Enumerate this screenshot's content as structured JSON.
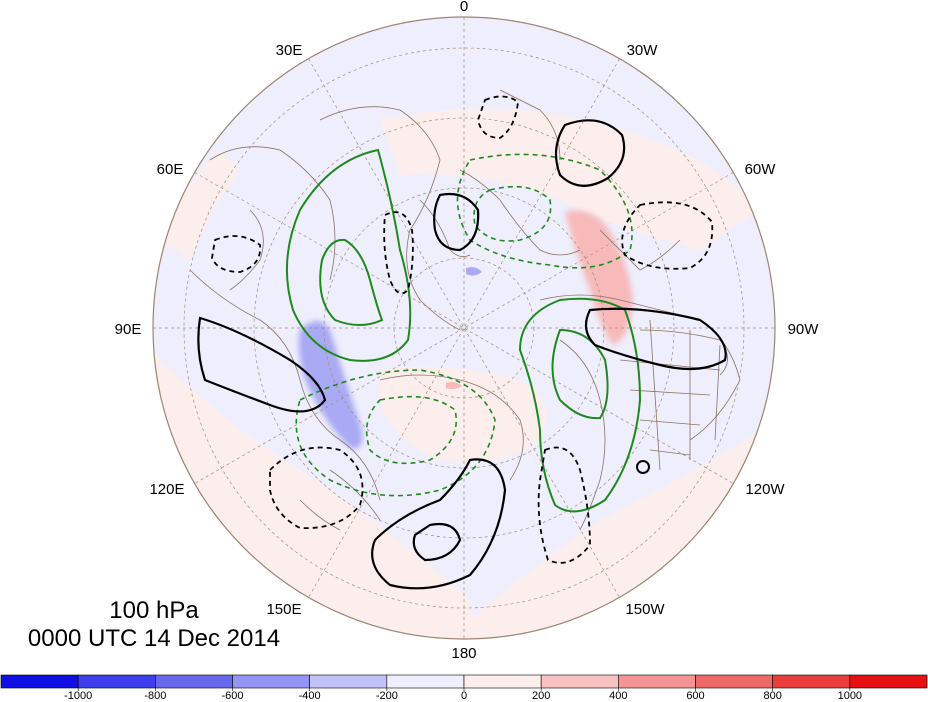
{
  "title": {
    "level": "100 hPa",
    "time": "0000 UTC 14 Dec 2014"
  },
  "projection": "north polar stereographic",
  "longitude_labels": {
    "lon_0": "0",
    "lon_30w": "30W",
    "lon_60w": "60W",
    "lon_90w": "90W",
    "lon_120w": "120W",
    "lon_150w": "150W",
    "lon_180": "180",
    "lon_150e": "150E",
    "lon_120e": "120E",
    "lon_90e": "90E",
    "lon_60e": "60E",
    "lon_30e": "30E"
  },
  "colorbar": {
    "ticks": [
      "-1000",
      "-800",
      "-600",
      "-400",
      "-200",
      "0",
      "200",
      "400",
      "600",
      "800",
      "1000"
    ],
    "colors": [
      "#1010e6",
      "#3d3deb",
      "#6868ef",
      "#9494f4",
      "#c2c2f9",
      "#eeeefd",
      "#fdeeee",
      "#f9c2c2",
      "#f49494",
      "#ef6868",
      "#eb3d3d",
      "#e61010"
    ]
  },
  "contour_styles": {
    "positive_anomaly": "#000000",
    "negative_anomaly_dashed": "#000000",
    "green_contours": "#1e8a1e"
  }
}
